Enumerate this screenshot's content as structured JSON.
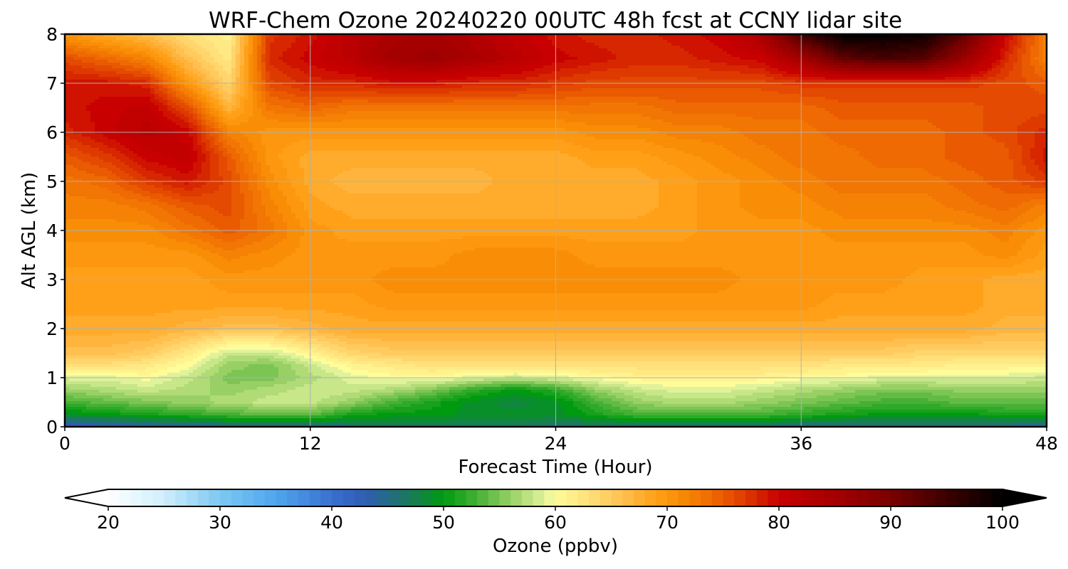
{
  "chart_data": {
    "type": "heatmap",
    "title": "WRF-Chem Ozone  20240220 00UTC 48h fcst at CCNY lidar site",
    "xlabel": "Forecast Time (Hour)",
    "ylabel": "Alt AGL (km)",
    "xlim": [
      0,
      48
    ],
    "ylim": [
      0,
      8
    ],
    "x_ticks": [
      "0",
      "12",
      "24",
      "36",
      "48"
    ],
    "y_ticks": [
      "0",
      "1",
      "2",
      "3",
      "4",
      "5",
      "6",
      "7",
      "8"
    ],
    "grid": true,
    "colorbar": {
      "label": "Ozone  (ppbv)",
      "range": [
        20,
        100
      ],
      "ticks": [
        "20",
        "30",
        "40",
        "50",
        "60",
        "70",
        "80",
        "90",
        "100"
      ],
      "extend": "both",
      "color_stops": [
        {
          "v": 20,
          "c": "#ffffff"
        },
        {
          "v": 25,
          "c": "#cfeefc"
        },
        {
          "v": 30,
          "c": "#7cc8f2"
        },
        {
          "v": 35,
          "c": "#4fa6ee"
        },
        {
          "v": 40,
          "c": "#3a6fcf"
        },
        {
          "v": 43,
          "c": "#2e5db2"
        },
        {
          "v": 47,
          "c": "#1a7a5a"
        },
        {
          "v": 50,
          "c": "#009a10"
        },
        {
          "v": 53,
          "c": "#45b035"
        },
        {
          "v": 56,
          "c": "#98d065"
        },
        {
          "v": 59,
          "c": "#e0f29a"
        },
        {
          "v": 60,
          "c": "#fffc9a"
        },
        {
          "v": 63,
          "c": "#ffe07a"
        },
        {
          "v": 66,
          "c": "#ffc050"
        },
        {
          "v": 69,
          "c": "#ffa018"
        },
        {
          "v": 71,
          "c": "#f98e06"
        },
        {
          "v": 74,
          "c": "#ef6a02"
        },
        {
          "v": 77,
          "c": "#de3a00"
        },
        {
          "v": 80,
          "c": "#c80000"
        },
        {
          "v": 85,
          "c": "#a40000"
        },
        {
          "v": 90,
          "c": "#7a0000"
        },
        {
          "v": 95,
          "c": "#3c0000"
        },
        {
          "v": 100,
          "c": "#000000"
        }
      ]
    },
    "x": [
      0,
      2,
      4,
      6,
      8,
      10,
      12,
      14,
      16,
      18,
      20,
      22,
      24,
      26,
      28,
      30,
      32,
      34,
      36,
      38,
      40,
      42,
      44,
      46,
      48
    ],
    "y": [
      0,
      0.25,
      0.5,
      0.75,
      1.0,
      1.25,
      1.5,
      2.0,
      2.5,
      3.0,
      3.5,
      4.0,
      4.5,
      5.0,
      5.5,
      6.0,
      6.5,
      7.0,
      7.5,
      8.0
    ],
    "z": [
      [
        42,
        43,
        44,
        44,
        45,
        45,
        45,
        46,
        47,
        47,
        47,
        47,
        46,
        46,
        46,
        46,
        46,
        46,
        45,
        45,
        45,
        45,
        45,
        45,
        44
      ],
      [
        49,
        50,
        51,
        52,
        53,
        54,
        54,
        51,
        50,
        50,
        49,
        49,
        49,
        51,
        53,
        53,
        53,
        53,
        52,
        51,
        50,
        50,
        50,
        51,
        51
      ],
      [
        53,
        54,
        55,
        56,
        57,
        58,
        58,
        56,
        53,
        51,
        49,
        48,
        49,
        53,
        56,
        57,
        57,
        56,
        55,
        54,
        53,
        53,
        54,
        54,
        54
      ],
      [
        56,
        57,
        58,
        57,
        56,
        57,
        58,
        58,
        57,
        55,
        52,
        50,
        52,
        56,
        58,
        59,
        59,
        58,
        57,
        56,
        55,
        55,
        56,
        56,
        56
      ],
      [
        59,
        59,
        60,
        58,
        55,
        55,
        57,
        59,
        60,
        60,
        59,
        58,
        59,
        60,
        61,
        61,
        61,
        61,
        60,
        60,
        59,
        59,
        59,
        59,
        58
      ],
      [
        63,
        63,
        62,
        60,
        56,
        55,
        58,
        61,
        62,
        63,
        63,
        63,
        63,
        63,
        63,
        63,
        63,
        63,
        63,
        62,
        62,
        62,
        61,
        61,
        61
      ],
      [
        66,
        66,
        65,
        62,
        58,
        58,
        61,
        64,
        65,
        65,
        65,
        65,
        65,
        65,
        65,
        65,
        65,
        65,
        65,
        65,
        65,
        64,
        64,
        64,
        64
      ],
      [
        68,
        68,
        68,
        67,
        66,
        66,
        67,
        68,
        68,
        68,
        68,
        68,
        68,
        68,
        68,
        68,
        68,
        68,
        68,
        68,
        68,
        68,
        68,
        67,
        67
      ],
      [
        69,
        69,
        69,
        69,
        69,
        69,
        69,
        69,
        70,
        70,
        70,
        70,
        70,
        70,
        70,
        70,
        70,
        70,
        70,
        69,
        69,
        69,
        69,
        68,
        68
      ],
      [
        69,
        69,
        69,
        69,
        70,
        70,
        70,
        70,
        71,
        71,
        71,
        71,
        71,
        71,
        71,
        71,
        71,
        70,
        70,
        70,
        70,
        69,
        69,
        68,
        68
      ],
      [
        70,
        70,
        70,
        70,
        72,
        71,
        70,
        70,
        70,
        70,
        71,
        71,
        71,
        70,
        70,
        70,
        70,
        70,
        70,
        70,
        70,
        70,
        70,
        71,
        69
      ],
      [
        71,
        71,
        71,
        73,
        75,
        73,
        70,
        69,
        69,
        69,
        69,
        69,
        69,
        69,
        69,
        69,
        70,
        70,
        70,
        71,
        71,
        71,
        71,
        72,
        70
      ],
      [
        72,
        72,
        73,
        75,
        76,
        72,
        69,
        68,
        68,
        68,
        68,
        68,
        68,
        68,
        68,
        69,
        70,
        71,
        71,
        72,
        72,
        72,
        73,
        74,
        72
      ],
      [
        73,
        74,
        77,
        79,
        76,
        71,
        68,
        67,
        67,
        67,
        67,
        68,
        68,
        68,
        68,
        69,
        70,
        71,
        72,
        73,
        73,
        73,
        74,
        75,
        77
      ],
      [
        75,
        77,
        80,
        81,
        75,
        70,
        68,
        68,
        68,
        68,
        68,
        68,
        68,
        69,
        69,
        70,
        71,
        72,
        73,
        73,
        74,
        74,
        75,
        75,
        79
      ],
      [
        78,
        80,
        82,
        80,
        72,
        70,
        70,
        70,
        70,
        70,
        70,
        70,
        70,
        71,
        71,
        72,
        72,
        73,
        73,
        74,
        74,
        74,
        75,
        76,
        78
      ],
      [
        79,
        80,
        81,
        76,
        67,
        73,
        74,
        73,
        73,
        73,
        73,
        73,
        73,
        73,
        73,
        74,
        74,
        74,
        74,
        75,
        75,
        75,
        75,
        76,
        76
      ],
      [
        79,
        79,
        78,
        70,
        64,
        76,
        78,
        78,
        79,
        79,
        78,
        78,
        77,
        76,
        76,
        76,
        76,
        76,
        77,
        77,
        77,
        77,
        77,
        76,
        75
      ],
      [
        76,
        74,
        72,
        66,
        62,
        78,
        80,
        82,
        85,
        86,
        84,
        82,
        80,
        79,
        78,
        78,
        79,
        80,
        85,
        92,
        94,
        93,
        86,
        78,
        72
      ],
      [
        70,
        68,
        66,
        63,
        61,
        77,
        79,
        82,
        84,
        85,
        83,
        81,
        79,
        78,
        78,
        79,
        80,
        84,
        95,
        100,
        100,
        99,
        92,
        80,
        72
      ]
    ]
  }
}
